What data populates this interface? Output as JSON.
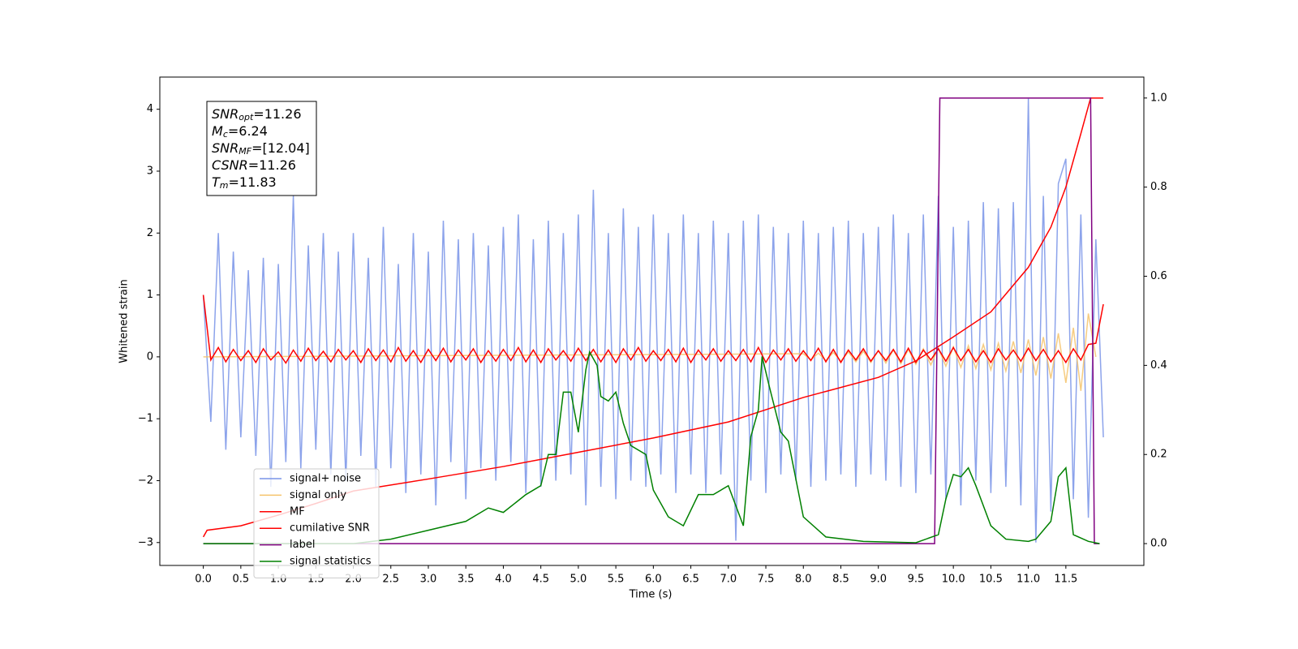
{
  "chart_data": {
    "type": "line",
    "xlabel": "Time (s)",
    "ylabel": "Whitened strain",
    "xlim": [
      -0.58,
      12.54
    ],
    "ylim": [
      -3.37,
      4.52
    ],
    "y2lim": [
      -0.049,
      1.047
    ],
    "xticks": [
      {
        "value": 0,
        "label": "0.0"
      },
      0.5,
      {
        "value": 1,
        "label": "1.0"
      },
      1.5,
      {
        "value": 2,
        "label": "2.0"
      },
      2.5,
      {
        "value": 3,
        "label": "3.0"
      },
      3.5,
      {
        "value": 4,
        "label": "4.0"
      },
      4.5,
      {
        "value": 5,
        "label": "5.0"
      },
      5.5,
      {
        "value": 6,
        "label": "6.0"
      },
      6.5,
      {
        "value": 7,
        "label": "7.0"
      },
      7.5,
      {
        "value": 8,
        "label": "8.0"
      },
      8.5,
      {
        "value": 9,
        "label": "9.0"
      },
      9.5,
      {
        "value": 10,
        "label": "10.0"
      },
      10.5,
      {
        "value": 11,
        "label": "11.0"
      },
      11.5
    ],
    "yticks": [
      {
        "value": -3,
        "label": "−3"
      },
      {
        "value": -2,
        "label": "−2"
      },
      {
        "value": -1,
        "label": "−1"
      },
      0,
      1,
      2,
      3,
      4
    ],
    "y2ticks": [
      {
        "value": 0,
        "label": "0.0"
      },
      0.2,
      0.4,
      0.6,
      0.8,
      {
        "value": 1,
        "label": "1.0"
      }
    ],
    "legend": "lower left",
    "annotations": [
      {
        "symbol": "SNR",
        "sub": "opt",
        "text": "=11.26"
      },
      {
        "symbol": "M",
        "sub": "c",
        "text": "=6.24"
      },
      {
        "symbol": "SNR",
        "sub": "MF",
        "text": "=[12.04]"
      },
      {
        "symbol": "CSNR",
        "text": "=11.26"
      },
      {
        "symbol": "T",
        "sub": "m",
        "text": "=11.83"
      }
    ],
    "series": [
      {
        "name": "signal+ noise",
        "color": "#7893e8",
        "x": [
          0,
          0.1,
          0.2,
          0.3,
          0.4,
          0.5,
          0.6,
          0.7,
          0.8,
          0.9,
          1,
          1.1,
          1.2,
          1.3,
          1.4,
          1.5,
          1.6,
          1.7,
          1.8,
          1.9,
          2,
          2.1,
          2.2,
          2.3,
          2.4,
          2.5,
          2.6,
          2.7,
          2.8,
          2.9,
          3,
          3.1,
          3.2,
          3.3,
          3.4,
          3.5,
          3.6,
          3.7,
          3.8,
          3.9,
          4,
          4.1,
          4.2,
          4.3,
          4.4,
          4.5,
          4.6,
          4.7,
          4.8,
          4.9,
          5,
          5.1,
          5.2,
          5.3,
          5.4,
          5.5,
          5.6,
          5.7,
          5.8,
          5.9,
          6,
          6.1,
          6.2,
          6.3,
          6.4,
          6.5,
          6.6,
          6.7,
          6.8,
          6.9,
          7,
          7.1,
          7.2,
          7.3,
          7.4,
          7.5,
          7.6,
          7.7,
          7.8,
          7.9,
          8,
          8.1,
          8.2,
          8.3,
          8.4,
          8.5,
          8.6,
          8.7,
          8.8,
          8.9,
          9,
          9.1,
          9.2,
          9.3,
          9.4,
          9.5,
          9.6,
          9.7,
          9.8,
          9.9,
          10,
          10.1,
          10.2,
          10.3,
          10.4,
          10.5,
          10.6,
          10.7,
          10.8,
          10.9,
          11,
          11.1,
          11.2,
          11.3,
          11.4,
          11.5,
          11.6,
          11.7,
          11.8,
          11.9,
          12
        ],
        "values": [
          1.0,
          -1.05,
          2.0,
          -1.5,
          1.7,
          -1.3,
          1.4,
          -1.6,
          1.6,
          -2.1,
          1.5,
          -1.7,
          2.6,
          -1.8,
          1.8,
          -1.5,
          2.0,
          -1.9,
          1.7,
          -2.0,
          2.0,
          -1.6,
          1.6,
          -2.1,
          2.1,
          -1.8,
          1.5,
          -2.2,
          2.0,
          -1.9,
          1.7,
          -2.4,
          2.2,
          -1.7,
          1.9,
          -2.3,
          2.0,
          -1.8,
          1.8,
          -2.0,
          2.1,
          -1.7,
          2.3,
          -2.2,
          1.9,
          -2.1,
          2.2,
          -2.0,
          2.0,
          -1.9,
          2.3,
          -2.4,
          2.7,
          -2.1,
          2.0,
          -2.3,
          2.4,
          -2.0,
          2.1,
          -2.1,
          2.3,
          -1.9,
          2.0,
          -2.2,
          2.3,
          -1.9,
          2.0,
          -2.2,
          2.2,
          -1.9,
          2.0,
          -2.97,
          2.2,
          -2.0,
          2.3,
          -2.2,
          2.1,
          -1.9,
          2.0,
          -2.0,
          2.2,
          -2.1,
          2.0,
          -2.0,
          2.1,
          -1.9,
          2.2,
          -2.1,
          2.0,
          -1.9,
          2.1,
          -2.0,
          2.3,
          -2.1,
          2.0,
          -2.2,
          2.3,
          -1.9,
          2.6,
          -2.3,
          2.1,
          -2.4,
          2.2,
          -2.0,
          2.5,
          -2.2,
          2.4,
          -2.1,
          2.5,
          -2.4,
          4.17,
          -3.0,
          2.6,
          -2.5,
          2.8,
          3.2,
          -2.3,
          2.3,
          -2.6,
          1.9,
          -1.3
        ]
      },
      {
        "name": "signal only",
        "color": "#f5c36b",
        "x": [
          0,
          8,
          8.1,
          8.2,
          8.3,
          8.4,
          8.5,
          8.6,
          8.7,
          8.8,
          8.9,
          9,
          9.1,
          9.2,
          9.3,
          9.4,
          9.5,
          9.6,
          9.7,
          9.8,
          9.9,
          10,
          10.1,
          10.2,
          10.3,
          10.4,
          10.5,
          10.6,
          10.7,
          10.8,
          10.9,
          11,
          11.1,
          11.2,
          11.3,
          11.4,
          11.5,
          11.6,
          11.7,
          11.8,
          11.9
        ],
        "values": [
          0,
          0.05,
          -0.05,
          0.06,
          -0.06,
          0.07,
          -0.07,
          0.08,
          -0.08,
          0.09,
          -0.09,
          0.1,
          -0.1,
          0.11,
          -0.11,
          0.12,
          -0.12,
          0.13,
          -0.13,
          0.14,
          -0.15,
          0.16,
          -0.17,
          0.18,
          -0.19,
          0.2,
          -0.21,
          0.22,
          -0.23,
          0.25,
          -0.26,
          0.28,
          -0.3,
          0.32,
          -0.35,
          0.38,
          -0.42,
          0.47,
          -0.55,
          0.7,
          0
        ]
      },
      {
        "name": "MF",
        "color": "#ff0000",
        "x": [
          0,
          0.1,
          0.2,
          0.3,
          0.4,
          0.5,
          0.6,
          0.7,
          0.8,
          0.9,
          1,
          1.1,
          1.2,
          1.3,
          1.4,
          1.5,
          1.6,
          1.7,
          1.8,
          1.9,
          2,
          2.1,
          2.2,
          2.3,
          2.4,
          2.5,
          2.6,
          2.7,
          2.8,
          2.9,
          3,
          3.1,
          3.2,
          3.3,
          3.4,
          3.5,
          3.6,
          3.7,
          3.8,
          3.9,
          4,
          4.1,
          4.2,
          4.3,
          4.4,
          4.5,
          4.6,
          4.7,
          4.8,
          4.9,
          5,
          5.1,
          5.2,
          5.3,
          5.4,
          5.5,
          5.6,
          5.7,
          5.8,
          5.9,
          6,
          6.1,
          6.2,
          6.3,
          6.4,
          6.5,
          6.6,
          6.7,
          6.8,
          6.9,
          7,
          7.1,
          7.2,
          7.3,
          7.4,
          7.5,
          7.6,
          7.7,
          7.8,
          7.9,
          8,
          8.1,
          8.2,
          8.3,
          8.4,
          8.5,
          8.6,
          8.7,
          8.8,
          8.9,
          9,
          9.1,
          9.2,
          9.3,
          9.4,
          9.5,
          9.6,
          9.7,
          9.8,
          9.9,
          10,
          10.1,
          10.2,
          10.3,
          10.4,
          10.5,
          10.6,
          10.7,
          10.8,
          10.9,
          11,
          11.1,
          11.2,
          11.3,
          11.4,
          11.5,
          11.6,
          11.7,
          11.8,
          11.9,
          12
        ],
        "values": [
          1.0,
          -0.05,
          0.15,
          -0.08,
          0.12,
          -0.06,
          0.1,
          -0.09,
          0.13,
          -0.05,
          0.08,
          -0.1,
          0.11,
          -0.07,
          0.14,
          -0.06,
          0.09,
          -0.08,
          0.12,
          -0.05,
          0.1,
          -0.09,
          0.13,
          -0.06,
          0.11,
          -0.08,
          0.15,
          -0.07,
          0.1,
          -0.09,
          0.12,
          -0.06,
          0.14,
          -0.08,
          0.11,
          -0.05,
          0.13,
          -0.09,
          0.1,
          -0.07,
          0.12,
          -0.06,
          0.15,
          -0.08,
          0.11,
          -0.09,
          0.13,
          -0.05,
          0.1,
          -0.07,
          0.14,
          -0.06,
          0.12,
          -0.08,
          0.11,
          -0.09,
          0.13,
          -0.05,
          0.15,
          -0.07,
          0.1,
          -0.06,
          0.12,
          -0.08,
          0.14,
          -0.09,
          0.11,
          -0.05,
          0.13,
          -0.07,
          0.1,
          -0.06,
          0.12,
          -0.08,
          0.15,
          -0.09,
          0.11,
          -0.05,
          0.13,
          -0.07,
          0.1,
          -0.06,
          0.14,
          -0.08,
          0.12,
          -0.09,
          0.11,
          -0.05,
          0.13,
          -0.07,
          0.1,
          -0.06,
          0.12,
          -0.08,
          0.14,
          -0.09,
          0.11,
          -0.05,
          0.13,
          -0.07,
          0.15,
          -0.06,
          0.12,
          -0.08,
          0.1,
          -0.09,
          0.13,
          -0.05,
          0.11,
          -0.07,
          0.14,
          -0.06,
          0.12,
          -0.08,
          0.1,
          -0.09,
          0.13,
          -0.05,
          0.2,
          0.22,
          0.85
        ]
      },
      {
        "name": "cumilative SNR",
        "color": "#ff0000",
        "axis": "y2",
        "x": [
          0,
          0.05,
          0.5,
          1,
          1.5,
          2,
          3,
          4,
          5,
          6,
          7,
          8,
          9,
          9.5,
          10,
          10.5,
          11,
          11.3,
          11.5,
          11.7,
          11.83,
          12
        ],
        "values": [
          0.015,
          0.03,
          0.04,
          0.064,
          0.09,
          0.118,
          0.145,
          0.173,
          0.205,
          0.237,
          0.273,
          0.328,
          0.373,
          0.41,
          0.464,
          0.52,
          0.62,
          0.71,
          0.8,
          0.92,
          1.0,
          1.0
        ]
      },
      {
        "name": "label",
        "color": "#800080",
        "axis": "y2",
        "x": [
          0,
          9.75,
          9.82,
          11.83,
          11.88,
          11.95
        ],
        "values": [
          0,
          0,
          1,
          1,
          0,
          0
        ]
      },
      {
        "name": "signal statistics",
        "color": "#008000",
        "axis": "y2",
        "x": [
          0,
          2,
          2.5,
          3,
          3.5,
          3.8,
          4,
          4.3,
          4.5,
          4.6,
          4.7,
          4.8,
          4.9,
          5,
          5.1,
          5.15,
          5.25,
          5.3,
          5.4,
          5.5,
          5.6,
          5.7,
          5.9,
          6,
          6.2,
          6.4,
          6.6,
          6.8,
          7,
          7.2,
          7.3,
          7.4,
          7.45,
          7.55,
          7.7,
          7.8,
          8,
          8.3,
          8.8,
          9.5,
          9.8,
          9.9,
          10,
          10.1,
          10.2,
          10.3,
          10.5,
          10.7,
          11,
          11.1,
          11.3,
          11.4,
          11.5,
          11.6,
          11.8,
          11.95
        ],
        "values": [
          0,
          0,
          0.01,
          0.03,
          0.05,
          0.08,
          0.07,
          0.11,
          0.13,
          0.2,
          0.2,
          0.34,
          0.34,
          0.25,
          0.39,
          0.43,
          0.4,
          0.33,
          0.32,
          0.34,
          0.27,
          0.22,
          0.2,
          0.12,
          0.06,
          0.04,
          0.11,
          0.11,
          0.13,
          0.04,
          0.24,
          0.3,
          0.42,
          0.35,
          0.25,
          0.23,
          0.06,
          0.015,
          0.005,
          0.002,
          0.02,
          0.1,
          0.155,
          0.15,
          0.17,
          0.13,
          0.04,
          0.01,
          0.005,
          0.01,
          0.05,
          0.15,
          0.17,
          0.02,
          0.005,
          0
        ]
      }
    ]
  }
}
